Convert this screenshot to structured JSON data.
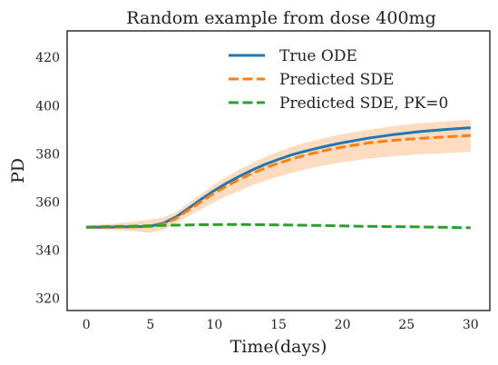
{
  "chart_data": {
    "type": "line",
    "title": "Random example from dose 400mg",
    "xlabel": "Time(days)",
    "ylabel": "PD",
    "xlim": [
      -1.5,
      31.5
    ],
    "ylim": [
      315,
      431
    ],
    "xticks": [
      0,
      5,
      10,
      15,
      20,
      25,
      30
    ],
    "yticks": [
      320,
      340,
      360,
      380,
      400,
      420
    ],
    "grid": false,
    "legend_position": "top-right",
    "series": [
      {
        "name": "True ODE",
        "style": "solid",
        "color": "#1f77b4",
        "x": [
          0,
          2,
          4,
          5,
          6,
          7,
          8,
          9,
          10,
          11,
          12,
          13,
          14,
          15,
          16,
          17,
          18,
          19,
          20,
          22,
          24,
          26,
          28,
          30
        ],
        "values": [
          349.5,
          349.6,
          349.8,
          350.0,
          351.2,
          353.8,
          357.5,
          361.3,
          364.8,
          368.0,
          370.8,
          373.4,
          375.7,
          377.7,
          379.5,
          381.0,
          382.3,
          383.5,
          384.6,
          386.5,
          388.0,
          389.2,
          390.1,
          390.8
        ]
      },
      {
        "name": "Predicted SDE",
        "style": "dashed",
        "color": "#ff7f0e",
        "x": [
          0,
          2,
          4,
          5,
          6,
          7,
          8,
          9,
          10,
          11,
          12,
          13,
          14,
          15,
          16,
          17,
          18,
          19,
          20,
          22,
          24,
          26,
          28,
          30
        ],
        "values": [
          349.5,
          349.6,
          349.7,
          349.8,
          350.8,
          353.2,
          356.7,
          360.3,
          363.7,
          366.8,
          369.5,
          372.0,
          374.2,
          376.1,
          377.8,
          379.3,
          380.6,
          381.8,
          382.8,
          384.5,
          385.6,
          386.4,
          387.0,
          387.6
        ]
      },
      {
        "name": "Predicted SDE, PK=0",
        "style": "dashed",
        "color": "#2ca02c",
        "x": [
          0,
          3,
          6,
          9,
          12,
          15,
          18,
          21,
          24,
          27,
          30
        ],
        "values": [
          349.6,
          349.9,
          350.3,
          350.6,
          350.7,
          350.5,
          350.3,
          350.0,
          349.8,
          349.6,
          349.3
        ]
      }
    ],
    "band": {
      "color": "#ffdcbf",
      "x": [
        0,
        2,
        4,
        5,
        6,
        7,
        8,
        9,
        10,
        11,
        12,
        13,
        14,
        15,
        16,
        17,
        18,
        19,
        20,
        22,
        24,
        26,
        28,
        30
      ],
      "lower": [
        349.0,
        348.5,
        347.8,
        347.2,
        348.5,
        351.2,
        354.2,
        357.2,
        360.0,
        362.6,
        364.9,
        367.0,
        368.9,
        370.6,
        372.1,
        373.4,
        374.6,
        375.6,
        376.5,
        378.0,
        379.0,
        379.8,
        380.3,
        380.8
      ],
      "upper": [
        350.2,
        351.0,
        352.0,
        352.8,
        353.6,
        355.8,
        359.5,
        363.5,
        367.3,
        370.7,
        373.6,
        376.3,
        378.8,
        380.9,
        382.8,
        384.4,
        385.8,
        387.0,
        388.1,
        390.0,
        391.5,
        392.7,
        393.5,
        394.2
      ]
    }
  }
}
